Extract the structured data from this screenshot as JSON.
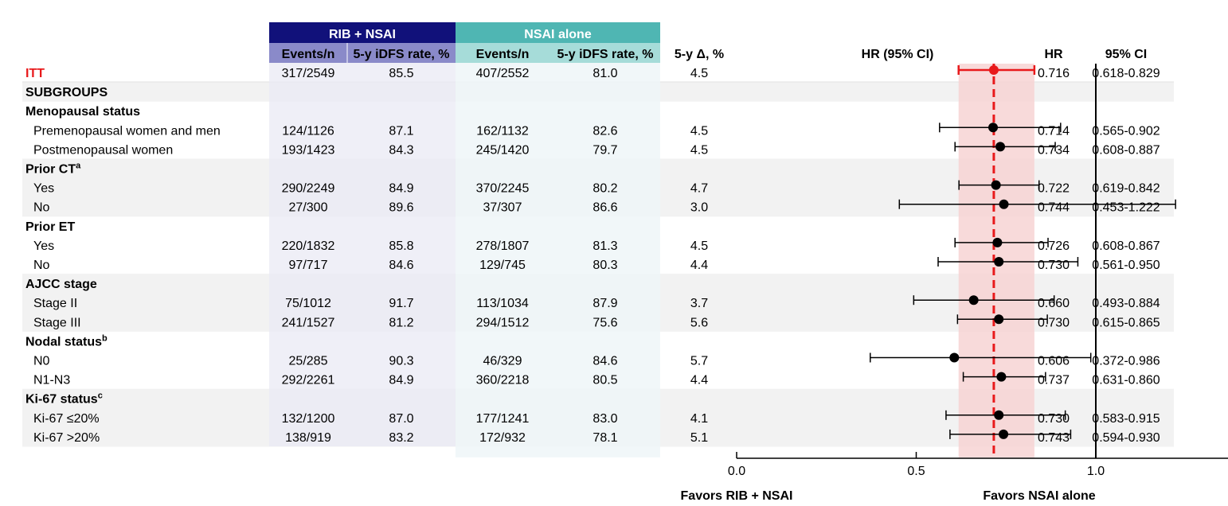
{
  "header": {
    "groupA": "RIB + NSAI",
    "groupB": "NSAI alone",
    "events": "Events/n",
    "rate": "5-y iDFS rate, %",
    "delta": "5-y Δ, %",
    "hrci": "HR (95% CI)",
    "hr": "HR",
    "ci": "95% CI"
  },
  "colors": {
    "rib_dark": "#11117a",
    "rib_light": "#8a8ac9",
    "rib_shade": "#eaeaf4",
    "nsai_dark": "#4fb6b3",
    "nsai_light": "#a6dcd9",
    "nsai_shade": "#eef6f8",
    "band": "#f7d4d4",
    "itt": "#e8191b"
  },
  "axis": {
    "ticks": [
      "0.0",
      "0.5",
      "1.0",
      "1.5"
    ],
    "tick_values": [
      0,
      0.5,
      1.0,
      1.5
    ],
    "xlim": [
      0,
      1.5
    ],
    "reference_line": 1.0,
    "favors_left": "Favors RIB + NSAI",
    "favors_right": "Favors NSAI alone"
  },
  "chart_data": {
    "type": "forest",
    "overall_hr": 0.716,
    "overall_ci": [
      0.618,
      0.829
    ],
    "rows": [
      {
        "kind": "itt",
        "label": "ITT",
        "rib_events": "317/2549",
        "rib_rate": "85.5",
        "nsai_events": "407/2552",
        "nsai_rate": "81.0",
        "delta": "4.5",
        "hr": 0.716,
        "lo": 0.618,
        "hi": 0.829,
        "hr_text": "0.716",
        "ci_text": "0.618-0.829"
      },
      {
        "kind": "subgroups",
        "label": "SUBGROUPS"
      },
      {
        "kind": "header",
        "label": "Menopausal status",
        "sup": ""
      },
      {
        "kind": "data",
        "label": "Premenopausal women and men",
        "rib_events": "124/1126",
        "rib_rate": "87.1",
        "nsai_events": "162/1132",
        "nsai_rate": "82.6",
        "delta": "4.5",
        "hr": 0.714,
        "lo": 0.565,
        "hi": 0.902,
        "hr_text": "0.714",
        "ci_text": "0.565-0.902"
      },
      {
        "kind": "data",
        "label": "Postmenopausal women",
        "rib_events": "193/1423",
        "rib_rate": "84.3",
        "nsai_events": "245/1420",
        "nsai_rate": "79.7",
        "delta": "4.5",
        "hr": 0.734,
        "lo": 0.608,
        "hi": 0.887,
        "hr_text": "0.734",
        "ci_text": "0.608-0.887"
      },
      {
        "kind": "header",
        "label": "Prior CT",
        "sup": "a"
      },
      {
        "kind": "data",
        "label": "Yes",
        "rib_events": "290/2249",
        "rib_rate": "84.9",
        "nsai_events": "370/2245",
        "nsai_rate": "80.2",
        "delta": "4.7",
        "hr": 0.722,
        "lo": 0.619,
        "hi": 0.842,
        "hr_text": "0.722",
        "ci_text": "0.619-0.842"
      },
      {
        "kind": "data",
        "label": "No",
        "rib_events": "27/300",
        "rib_rate": "89.6",
        "nsai_events": "37/307",
        "nsai_rate": "86.6",
        "delta": "3.0",
        "hr": 0.744,
        "lo": 0.453,
        "hi": 1.222,
        "hr_text": "0.744",
        "ci_text": "0.453-1.222"
      },
      {
        "kind": "header",
        "label": "Prior ET",
        "sup": ""
      },
      {
        "kind": "data",
        "label": "Yes",
        "rib_events": "220/1832",
        "rib_rate": "85.8",
        "nsai_events": "278/1807",
        "nsai_rate": "81.3",
        "delta": "4.5",
        "hr": 0.726,
        "lo": 0.608,
        "hi": 0.867,
        "hr_text": "0.726",
        "ci_text": "0.608-0.867"
      },
      {
        "kind": "data",
        "label": "No",
        "rib_events": "97/717",
        "rib_rate": "84.6",
        "nsai_events": "129/745",
        "nsai_rate": "80.3",
        "delta": "4.4",
        "hr": 0.73,
        "lo": 0.561,
        "hi": 0.95,
        "hr_text": "0.730",
        "ci_text": "0.561-0.950"
      },
      {
        "kind": "header",
        "label": "AJCC stage",
        "sup": ""
      },
      {
        "kind": "data",
        "label": "Stage II",
        "rib_events": "75/1012",
        "rib_rate": "91.7",
        "nsai_events": "113/1034",
        "nsai_rate": "87.9",
        "delta": "3.7",
        "hr": 0.66,
        "lo": 0.493,
        "hi": 0.884,
        "hr_text": "0.660",
        "ci_text": "0.493-0.884"
      },
      {
        "kind": "data",
        "label": "Stage III",
        "rib_events": "241/1527",
        "rib_rate": "81.2",
        "nsai_events": "294/1512",
        "nsai_rate": "75.6",
        "delta": "5.6",
        "hr": 0.73,
        "lo": 0.615,
        "hi": 0.865,
        "hr_text": "0.730",
        "ci_text": "0.615-0.865"
      },
      {
        "kind": "header",
        "label": "Nodal status",
        "sup": "b"
      },
      {
        "kind": "data",
        "label": "N0",
        "rib_events": "25/285",
        "rib_rate": "90.3",
        "nsai_events": "46/329",
        "nsai_rate": "84.6",
        "delta": "5.7",
        "hr": 0.606,
        "lo": 0.372,
        "hi": 0.986,
        "hr_text": "0.606",
        "ci_text": "0.372-0.986"
      },
      {
        "kind": "data",
        "label": "N1-N3",
        "rib_events": "292/2261",
        "rib_rate": "84.9",
        "nsai_events": "360/2218",
        "nsai_rate": "80.5",
        "delta": "4.4",
        "hr": 0.737,
        "lo": 0.631,
        "hi": 0.86,
        "hr_text": "0.737",
        "ci_text": "0.631-0.860"
      },
      {
        "kind": "header",
        "label": "Ki-67 status",
        "sup": "c"
      },
      {
        "kind": "data",
        "label": "Ki-67 ≤20%",
        "rib_events": "132/1200",
        "rib_rate": "87.0",
        "nsai_events": "177/1241",
        "nsai_rate": "83.0",
        "delta": "4.1",
        "hr": 0.73,
        "lo": 0.583,
        "hi": 0.915,
        "hr_text": "0.730",
        "ci_text": "0.583-0.915"
      },
      {
        "kind": "data",
        "label": "Ki-67 >20%",
        "rib_events": "138/919",
        "rib_rate": "83.2",
        "nsai_events": "172/932",
        "nsai_rate": "78.1",
        "delta": "5.1",
        "hr": 0.743,
        "lo": 0.594,
        "hi": 0.93,
        "hr_text": "0.743",
        "ci_text": "0.594-0.930"
      }
    ]
  }
}
